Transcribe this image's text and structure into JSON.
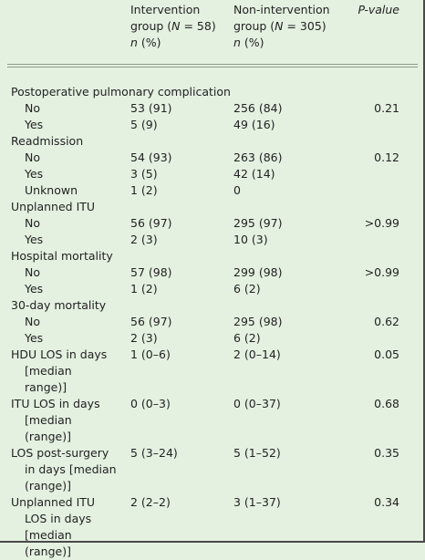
{
  "header": {
    "intervention": [
      "Intervention",
      "group (N = 58)",
      "n (%)"
    ],
    "nonintervention": [
      "Non-intervention",
      "group (N = 305)",
      "n (%)"
    ],
    "pvalue": "P-value"
  },
  "rows": [
    {
      "label": "",
      "a": "",
      "b": "",
      "p": ""
    },
    {
      "label": "Postoperative pulmonary complication",
      "a": "",
      "b": "",
      "p": ""
    },
    {
      "label": "No",
      "indent": true,
      "a": "53 (91)",
      "b": "256 (84)",
      "p": "0.21"
    },
    {
      "label": "Yes",
      "indent": true,
      "a": "5 (9)",
      "b": "49 (16)",
      "p": ""
    },
    {
      "label": "Readmission",
      "a": "",
      "b": "",
      "p": ""
    },
    {
      "label": "No",
      "indent": true,
      "a": "54 (93)",
      "b": "263 (86)",
      "p": "0.12"
    },
    {
      "label": "Yes",
      "indent": true,
      "a": "3 (5)",
      "b": "42 (14)",
      "p": ""
    },
    {
      "label": "Unknown",
      "indent": true,
      "a": "1 (2)",
      "b": "0",
      "p": ""
    },
    {
      "label": "Unplanned ITU",
      "a": "",
      "b": "",
      "p": ""
    },
    {
      "label": "No",
      "indent": true,
      "a": "56 (97)",
      "b": "295 (97)",
      "p": ">0.99"
    },
    {
      "label": "Yes",
      "indent": true,
      "a": "2 (3)",
      "b": "10 (3)",
      "p": ""
    },
    {
      "label": "Hospital mortality",
      "a": "",
      "b": "",
      "p": ""
    },
    {
      "label": "No",
      "indent": true,
      "a": "57 (98)",
      "b": "299 (98)",
      "p": ">0.99"
    },
    {
      "label": "Yes",
      "indent": true,
      "a": "1 (2)",
      "b": "6 (2)",
      "p": ""
    },
    {
      "label": "30-day mortality",
      "a": "",
      "b": "",
      "p": ""
    },
    {
      "label": "No",
      "indent": true,
      "a": "56 (97)",
      "b": "295 (98)",
      "p": "0.62"
    },
    {
      "label": "Yes",
      "indent": true,
      "a": "2 (3)",
      "b": "6 (2)",
      "p": ""
    },
    {
      "label": "HDU LOS in days",
      "a": "1 (0–6)",
      "b": "2 (0–14)",
      "p": "0.05"
    },
    {
      "label": "[median",
      "indent": true,
      "a": "",
      "b": "",
      "p": ""
    },
    {
      "label": "range)]",
      "indent": true,
      "a": "",
      "b": "",
      "p": ""
    },
    {
      "label": "ITU LOS in days",
      "a": "0 (0–3)",
      "b": "0 (0–37)",
      "p": "0.68"
    },
    {
      "label": "[median",
      "indent": true,
      "a": "",
      "b": "",
      "p": ""
    },
    {
      "label": "(range)]",
      "indent": true,
      "a": "",
      "b": "",
      "p": ""
    },
    {
      "label": "LOS post-surgery",
      "a": "5 (3–24)",
      "b": "5 (1–52)",
      "p": "0.35"
    },
    {
      "label": "in days [median",
      "indent": true,
      "a": "",
      "b": "",
      "p": ""
    },
    {
      "label": "(range)]",
      "indent": true,
      "a": "",
      "b": "",
      "p": ""
    },
    {
      "label": "Unplanned ITU",
      "a": "2 (2–2)",
      "b": "3 (1–37)",
      "p": "0.34"
    },
    {
      "label": "LOS in days",
      "indent": true,
      "a": "",
      "b": "",
      "p": ""
    },
    {
      "label": "[median",
      "indent": true,
      "a": "",
      "b": "",
      "p": ""
    },
    {
      "label": "(range)]",
      "indent": true,
      "a": "",
      "b": "",
      "p": ""
    }
  ]
}
